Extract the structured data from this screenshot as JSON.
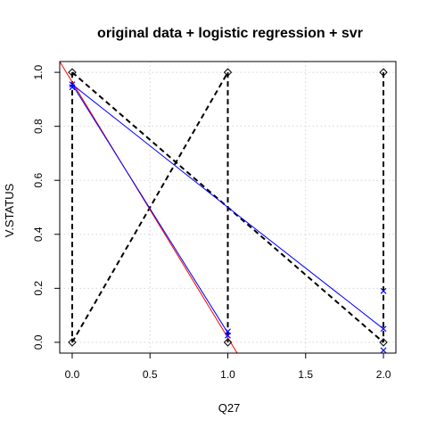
{
  "chart_data": {
    "type": "scatter",
    "title": "original data + logistic regression + svr",
    "xlabel": "Q27",
    "ylabel": "V.STATUS",
    "xlim": [
      -0.08,
      2.08
    ],
    "ylim": [
      -0.04,
      1.04
    ],
    "xticks": [
      0.0,
      0.5,
      1.0,
      1.5,
      2.0
    ],
    "yticks": [
      0.0,
      0.2,
      0.4,
      0.6,
      0.8,
      1.0
    ],
    "xtick_labels": [
      "0.0",
      "0.5",
      "1.0",
      "1.5",
      "2.0"
    ],
    "ytick_labels": [
      "0.0",
      "0.2",
      "0.4",
      "0.6",
      "0.8",
      "1.0"
    ],
    "grid": true,
    "legend": "none",
    "colors": {
      "data": "#000000",
      "fit_red": "#ff0000",
      "fit_blue": "#0000ff"
    },
    "series": [
      {
        "marker": "diamond-open",
        "color": "#000000",
        "points": [
          [
            0.0,
            0.0
          ],
          [
            0.0,
            1.0
          ],
          [
            1.0,
            0.0
          ],
          [
            1.0,
            1.0
          ],
          [
            2.0,
            0.0
          ],
          [
            2.0,
            1.0
          ]
        ]
      },
      {
        "marker": "x",
        "color": "#0000ff",
        "points": [
          [
            0.0,
            0.955
          ],
          [
            0.0,
            0.945
          ],
          [
            1.0,
            0.04
          ],
          [
            1.0,
            0.025
          ],
          [
            2.0,
            0.19
          ],
          [
            2.0,
            0.05
          ],
          [
            2.0,
            -0.03
          ]
        ]
      }
    ],
    "lines": [
      {
        "style": "dashed",
        "color": "#000000",
        "points": [
          [
            0.0,
            1.0
          ],
          [
            1.0,
            0.5
          ],
          [
            2.0,
            0.0
          ]
        ]
      },
      {
        "style": "dashed",
        "color": "#000000",
        "points": [
          [
            0.0,
            0.0
          ],
          [
            1.0,
            1.0
          ]
        ]
      },
      {
        "style": "dashed",
        "color": "#000000",
        "points": [
          [
            0.0,
            1.0
          ],
          [
            0.0,
            0.0
          ]
        ]
      },
      {
        "style": "dashed",
        "color": "#000000",
        "points": [
          [
            1.0,
            1.0
          ],
          [
            1.0,
            0.0
          ]
        ]
      },
      {
        "style": "dashed",
        "color": "#000000",
        "points": [
          [
            2.0,
            1.0
          ],
          [
            2.0,
            0.0
          ]
        ]
      },
      {
        "style": "solid",
        "color": "#ff0000",
        "points": [
          [
            -0.08,
            1.04
          ],
          [
            1.06,
            -0.04
          ]
        ]
      },
      {
        "style": "solid",
        "color": "#0000ff",
        "points": [
          [
            0.0,
            0.955
          ],
          [
            1.0,
            0.035
          ]
        ]
      },
      {
        "style": "solid",
        "color": "#0000ff",
        "points": [
          [
            0.0,
            0.955
          ],
          [
            1.0,
            0.5
          ],
          [
            2.0,
            0.05
          ]
        ]
      }
    ]
  }
}
